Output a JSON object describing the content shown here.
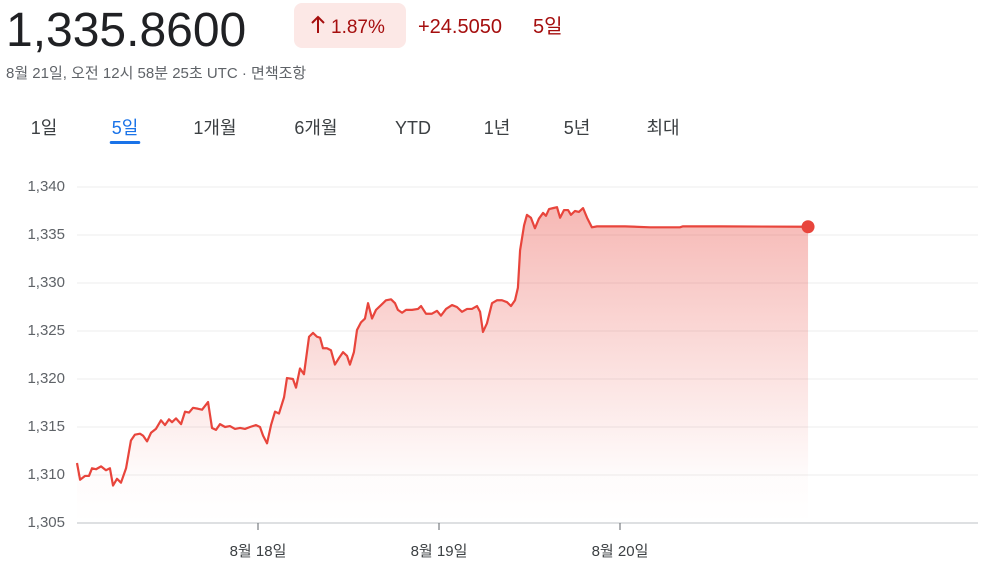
{
  "header": {
    "price": "1,335.8600",
    "change_percent": "1.87%",
    "change": "+24.5050",
    "period": "5일",
    "timestamp": "8월 21일, 오전 12시 58분 25초 UTC",
    "separator": "·",
    "disclaimer": "면책조항"
  },
  "tabs": {
    "labels": [
      "1일",
      "5일",
      "1개월",
      "6개월",
      "YTD",
      "1년",
      "5년",
      "최대"
    ],
    "selected": 1
  },
  "chart_data": {
    "type": "line",
    "color": "#e8453c",
    "grid": true,
    "x": [
      17,
      17.017,
      17.044,
      17.066,
      17.083,
      17.105,
      17.133,
      17.16,
      17.182,
      17.199,
      17.221,
      17.243,
      17.271,
      17.298,
      17.32,
      17.348,
      17.365,
      17.387,
      17.409,
      17.436,
      17.464,
      17.486,
      17.508,
      17.525,
      17.547,
      17.575,
      17.597,
      17.619,
      17.641,
      17.669,
      17.691,
      17.724,
      17.746,
      17.768,
      17.79,
      17.818,
      17.845,
      17.873,
      17.901,
      17.928,
      17.956,
      17.989,
      18.011,
      18.028,
      18.05,
      18.072,
      18.094,
      18.116,
      18.144,
      18.16,
      18.193,
      18.21,
      18.232,
      18.254,
      18.282,
      18.304,
      18.326,
      18.343,
      18.359,
      18.381,
      18.403,
      18.425,
      18.448,
      18.47,
      18.492,
      18.508,
      18.53,
      18.547,
      18.569,
      18.591,
      18.608,
      18.63,
      18.652,
      18.68,
      18.707,
      18.735,
      18.757,
      18.773,
      18.796,
      18.818,
      18.851,
      18.884,
      18.901,
      18.928,
      18.961,
      18.989,
      19.011,
      19.039,
      19.072,
      19.099,
      19.127,
      19.155,
      19.182,
      19.21,
      19.227,
      19.243,
      19.265,
      19.293,
      19.32,
      19.348,
      19.376,
      19.398,
      19.42,
      19.436,
      19.448,
      19.47,
      19.486,
      19.508,
      19.53,
      19.552,
      19.575,
      19.591,
      19.608,
      19.63,
      19.652,
      19.669,
      19.691,
      19.713,
      19.729,
      19.751,
      19.773,
      19.796,
      19.818,
      19.845,
      19.873,
      19.917,
      20.028,
      20.166,
      20.331,
      20.348,
      20.552,
      21.039
    ],
    "values": [
      1311.25,
      1309.5,
      1309.9,
      1309.9,
      1310.7,
      1310.6,
      1310.9,
      1310.5,
      1310.7,
      1308.9,
      1309.6,
      1309.2,
      1310.7,
      1313.6,
      1314.2,
      1314.3,
      1314.1,
      1313.5,
      1314.4,
      1314.8,
      1315.7,
      1315.2,
      1315.8,
      1315.5,
      1315.9,
      1315.3,
      1316.6,
      1316.5,
      1317.0,
      1316.9,
      1316.8,
      1317.6,
      1314.9,
      1314.7,
      1315.3,
      1315.0,
      1315.1,
      1314.8,
      1314.9,
      1314.8,
      1315.0,
      1315.2,
      1315.0,
      1314.1,
      1313.3,
      1315.2,
      1316.6,
      1316.4,
      1318.1,
      1320.1,
      1320.0,
      1319.1,
      1321.1,
      1320.5,
      1324.4,
      1324.8,
      1324.4,
      1324.3,
      1323.2,
      1323.2,
      1323.0,
      1321.5,
      1322.2,
      1322.8,
      1322.4,
      1321.5,
      1322.8,
      1325.1,
      1325.9,
      1326.3,
      1327.9,
      1326.3,
      1327.2,
      1327.7,
      1328.2,
      1328.3,
      1327.9,
      1327.2,
      1326.9,
      1327.2,
      1327.2,
      1327.3,
      1327.6,
      1326.8,
      1326.8,
      1327.1,
      1326.6,
      1327.3,
      1327.7,
      1327.5,
      1327.0,
      1327.3,
      1327.3,
      1327.6,
      1327.0,
      1324.9,
      1325.8,
      1327.9,
      1328.2,
      1328.2,
      1328.0,
      1327.6,
      1328.2,
      1329.5,
      1333.4,
      1336.0,
      1337.1,
      1336.8,
      1335.7,
      1336.7,
      1337.3,
      1337.0,
      1337.7,
      1337.8,
      1337.9,
      1336.8,
      1337.6,
      1337.6,
      1337.1,
      1337.5,
      1337.4,
      1337.8,
      1336.8,
      1335.8,
      1335.9,
      1335.9,
      1335.9,
      1335.8,
      1335.8,
      1335.9,
      1335.9,
      1335.86
    ],
    "xlim": [
      17,
      21.978
    ],
    "xticks": [
      {
        "value": 18,
        "label": "8월 18일"
      },
      {
        "value": 19,
        "label": "8월 19일"
      },
      {
        "value": 20,
        "label": "8월 20일"
      }
    ],
    "ylim": [
      1305,
      1340
    ],
    "yticks": [
      {
        "value": 1305,
        "label": "1,305"
      },
      {
        "value": 1310,
        "label": "1,310"
      },
      {
        "value": 1315,
        "label": "1,315"
      },
      {
        "value": 1320,
        "label": "1,320"
      },
      {
        "value": 1325,
        "label": "1,325"
      },
      {
        "value": 1330,
        "label": "1,330"
      },
      {
        "value": 1335,
        "label": "1,335"
      },
      {
        "value": 1340,
        "label": "1,340"
      }
    ]
  }
}
